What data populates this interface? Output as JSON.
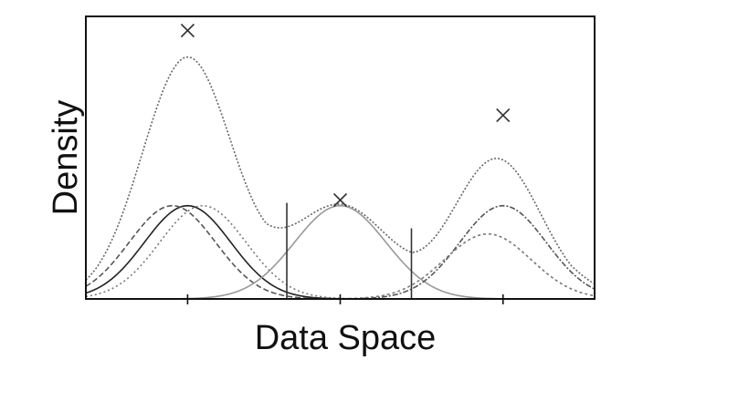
{
  "chart_data": {
    "type": "line",
    "title": "",
    "xlabel": "Data Space",
    "ylabel": "Density",
    "xlim": [
      0,
      10
    ],
    "ylim": [
      0,
      1
    ],
    "x_ticks": [
      2,
      5,
      8.2
    ],
    "tick_labels_shown": false,
    "grid": false,
    "legend": "none",
    "series": [
      {
        "role": "component",
        "color": "#222222",
        "dash": "none",
        "mean": 2.0,
        "sd": 0.85,
        "peak": 0.33
      },
      {
        "role": "component",
        "color": "#555555",
        "dash": "6,3",
        "mean": 1.7,
        "sd": 0.85,
        "peak": 0.33
      },
      {
        "role": "component",
        "color": "#777777",
        "dash": "2,3",
        "mean": 2.3,
        "sd": 0.85,
        "peak": 0.33
      },
      {
        "role": "component",
        "color": "#999999",
        "dash": "none",
        "mean": 5.0,
        "sd": 0.9,
        "peak": 0.33
      },
      {
        "role": "component",
        "color": "#555555",
        "dash": "6,2,2,2",
        "mean": 8.2,
        "sd": 0.85,
        "peak": 0.33
      },
      {
        "role": "component",
        "color": "#777777",
        "dash": "3,3",
        "mean": 7.9,
        "sd": 0.85,
        "peak": 0.23
      },
      {
        "role": "mixture",
        "color": "#666666",
        "dash": "2,2"
      }
    ],
    "markers": [
      {
        "x": 2.0,
        "y": 0.95
      },
      {
        "x": 5.0,
        "y": 0.35
      },
      {
        "x": 8.2,
        "y": 0.65
      }
    ],
    "vlines": [
      {
        "x": 3.95,
        "ymax": 0.34
      },
      {
        "x": 6.4,
        "ymax": 0.25
      }
    ]
  }
}
